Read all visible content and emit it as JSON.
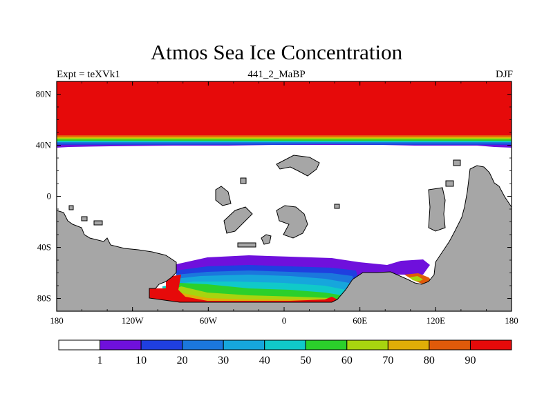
{
  "title": "Atmos Sea Ice Concentration",
  "subtitle_left": "Expt = teXVk1",
  "subtitle_center": "441_2_MaBP",
  "subtitle_right": "DJF",
  "colors": {
    "land": "#a6a6a6",
    "no_ice": "#ffffff",
    "frame": "#000000"
  },
  "map": {
    "lon_range": [
      -180,
      180
    ],
    "lat_range": [
      -90,
      90
    ],
    "x_ticks": [
      {
        "lon": -180,
        "label": "180"
      },
      {
        "lon": -120,
        "label": "120W"
      },
      {
        "lon": -60,
        "label": "60W"
      },
      {
        "lon": 0,
        "label": "0"
      },
      {
        "lon": 60,
        "label": "60E"
      },
      {
        "lon": 120,
        "label": "120E"
      },
      {
        "lon": 180,
        "label": "180"
      }
    ],
    "y_ticks": [
      {
        "lat": 80,
        "label": "80N"
      },
      {
        "lat": 40,
        "label": "40N"
      },
      {
        "lat": 0,
        "label": "0"
      },
      {
        "lat": -40,
        "label": "40S"
      },
      {
        "lat": -80,
        "label": "80S"
      }
    ]
  },
  "colorbar": {
    "levels": [
      {
        "color": "#ffffff"
      },
      {
        "color": "#6f10dc"
      },
      {
        "color": "#1f3fe0"
      },
      {
        "color": "#1b77dd"
      },
      {
        "color": "#16a6dc"
      },
      {
        "color": "#10c9c9"
      },
      {
        "color": "#2bd02b"
      },
      {
        "color": "#a7d40f"
      },
      {
        "color": "#e0ae07"
      },
      {
        "color": "#e05a0a"
      },
      {
        "color": "#e60a0a"
      }
    ],
    "labels": [
      "1",
      "10",
      "20",
      "30",
      "40",
      "50",
      "60",
      "70",
      "80",
      "90"
    ]
  }
}
